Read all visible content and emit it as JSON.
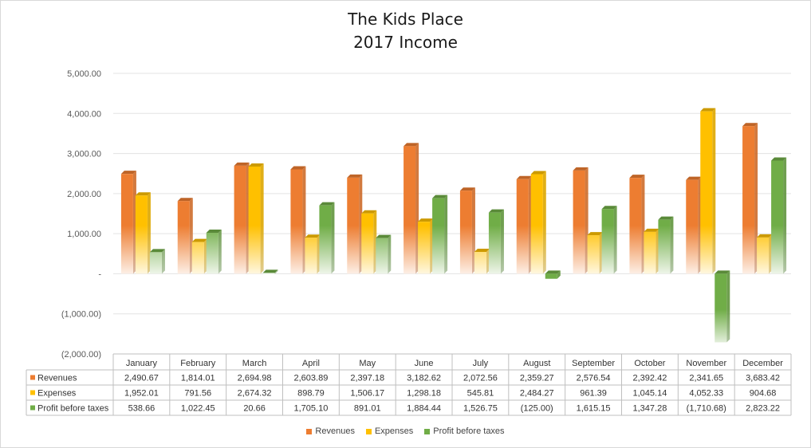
{
  "chart_data": {
    "type": "bar",
    "title": "The Kids Place",
    "subtitle": "2017 Income",
    "xlabel": "",
    "ylabel": "",
    "ylim": [
      -2000,
      5000
    ],
    "y_ticks": [
      5000,
      4000,
      3000,
      2000,
      1000,
      0,
      -1000,
      -2000
    ],
    "y_tick_labels": [
      "5,000.00",
      "4,000.00",
      "3,000.00",
      "2,000.00",
      "1,000.00",
      "-",
      "(1,000.00)",
      "(2,000.00)"
    ],
    "grid": true,
    "legend_position": "bottom",
    "categories": [
      "January",
      "February",
      "March",
      "April",
      "May",
      "June",
      "July",
      "August",
      "September",
      "October",
      "November",
      "December"
    ],
    "series": [
      {
        "name": "Revenues",
        "color": "#ed7d31",
        "values": [
          2490.67,
          1814.01,
          2694.98,
          2603.89,
          2397.18,
          3182.62,
          2072.56,
          2359.27,
          2576.54,
          2392.42,
          2341.65,
          3683.42
        ],
        "labels": [
          "2,490.67",
          "1,814.01",
          "2,694.98",
          "2,603.89",
          "2,397.18",
          "3,182.62",
          "2,072.56",
          "2,359.27",
          "2,576.54",
          "2,392.42",
          "2,341.65",
          "3,683.42"
        ]
      },
      {
        "name": "Expenses",
        "color": "#ffc000",
        "values": [
          1952.01,
          791.56,
          2674.32,
          898.79,
          1506.17,
          1298.18,
          545.81,
          2484.27,
          961.39,
          1045.14,
          4052.33,
          904.68
        ],
        "labels": [
          "1,952.01",
          "791.56",
          "2,674.32",
          "898.79",
          "1,506.17",
          "1,298.18",
          "545.81",
          "2,484.27",
          "961.39",
          "1,045.14",
          "4,052.33",
          "904.68"
        ]
      },
      {
        "name": "Profit before taxes",
        "color": "#70ad47",
        "values": [
          538.66,
          1022.45,
          20.66,
          1705.1,
          891.01,
          1884.44,
          1526.75,
          -125.0,
          1615.15,
          1347.28,
          -1710.68,
          2823.22
        ],
        "labels": [
          "538.66",
          "1,022.45",
          "20.66",
          "1,705.10",
          "891.01",
          "1,884.44",
          "1,526.75",
          "(125.00)",
          "1,615.15",
          "1,347.28",
          "(1,710.68)",
          "2,823.22"
        ]
      }
    ]
  }
}
